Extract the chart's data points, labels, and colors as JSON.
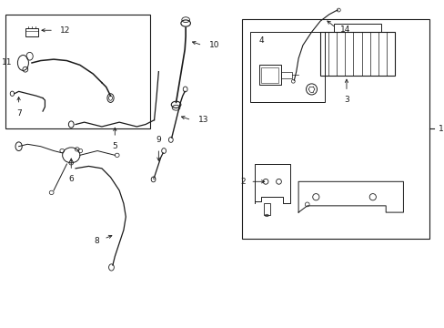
{
  "bg_color": "#ffffff",
  "line_color": "#1a1a1a",
  "figsize": [
    4.89,
    3.6
  ],
  "dpi": 100,
  "lw": 0.9
}
